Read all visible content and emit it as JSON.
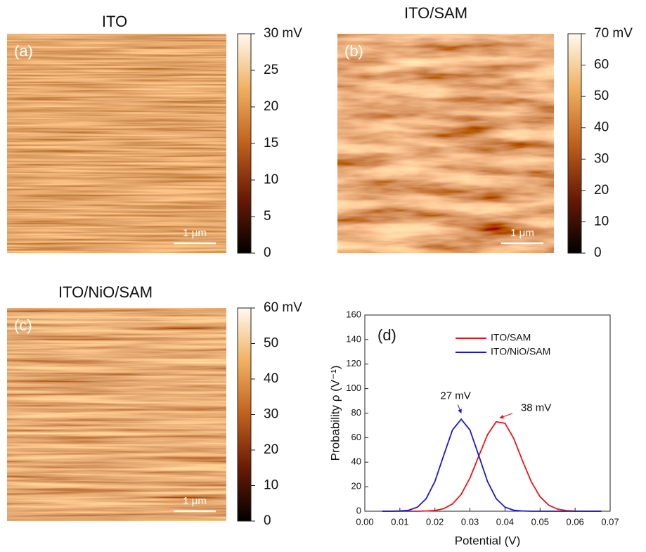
{
  "chart_data": [
    {
      "type": "heatmap",
      "title": "ITO",
      "panel_label": "(a)",
      "scale_bar": "1 μm",
      "clim": [
        0,
        30
      ],
      "cticks": [
        0,
        5,
        10,
        15,
        20,
        25,
        {
          "value": 30,
          "label": "30 mV"
        }
      ]
    },
    {
      "type": "heatmap",
      "title": "ITO/SAM",
      "panel_label": "(b)",
      "scale_bar": "1 μm",
      "clim": [
        0,
        70
      ],
      "cticks": [
        0,
        10,
        20,
        30,
        40,
        50,
        60,
        {
          "value": 70,
          "label": "70 mV"
        }
      ]
    },
    {
      "type": "heatmap",
      "title": "ITO/NiO/SAM",
      "panel_label": "(c)",
      "scale_bar": "1 μm",
      "clim": [
        0,
        60
      ],
      "cticks": [
        0,
        10,
        20,
        30,
        40,
        50,
        {
          "value": 60,
          "label": "60 mV"
        }
      ]
    },
    {
      "type": "line",
      "panel_label": "(d)",
      "xlabel": "Potential (V)",
      "ylabel": "Probability ρ (V⁻¹)",
      "xlim": [
        0,
        0.07
      ],
      "ylim": [
        0,
        160
      ],
      "xticks": [
        {
          "value": 0,
          "label": "0.00"
        },
        0.01,
        0.02,
        0.03,
        0.04,
        0.05,
        0.06,
        0.07
      ],
      "yticks": [
        0,
        20,
        40,
        60,
        80,
        100,
        120,
        140,
        160
      ],
      "legend": "upper right",
      "x": [
        0.005,
        0.0075,
        0.01,
        0.0125,
        0.015,
        0.0175,
        0.02,
        0.0225,
        0.025,
        0.0275,
        0.03,
        0.0325,
        0.035,
        0.0375,
        0.04,
        0.0425,
        0.045,
        0.0475,
        0.05,
        0.0525,
        0.055,
        0.0575,
        0.06,
        0.0625,
        0.065,
        0.0675
      ],
      "series": [
        {
          "name": "ITO/SAM",
          "color": "#e8141c",
          "values": [
            0,
            0,
            0,
            0,
            0,
            0.2,
            0.6,
            2.1,
            5.9,
            13.8,
            27.1,
            44.9,
            62.4,
            73.0,
            71.7,
            59.3,
            41.1,
            24.0,
            11.8,
            4.9,
            1.7,
            0.5,
            0.1,
            0,
            0,
            0
          ]
        },
        {
          "name": "ITO/NiO/SAM",
          "color": "#1a1acc",
          "values": [
            0,
            0,
            0.2,
            0.8,
            3.3,
            10.2,
            24.3,
            45.5,
            66.2,
            75.0,
            66.2,
            45.5,
            24.3,
            10.2,
            3.3,
            0.8,
            0.2,
            0,
            0,
            0,
            0,
            0,
            0,
            0,
            0,
            0
          ]
        }
      ],
      "annotations": [
        {
          "text": "27 mV",
          "x": 0.0275,
          "y": 80,
          "color": "#1a1acc"
        },
        {
          "text": "38 mV",
          "x": 0.0385,
          "y": 76,
          "color": "#e8141c"
        }
      ]
    }
  ]
}
